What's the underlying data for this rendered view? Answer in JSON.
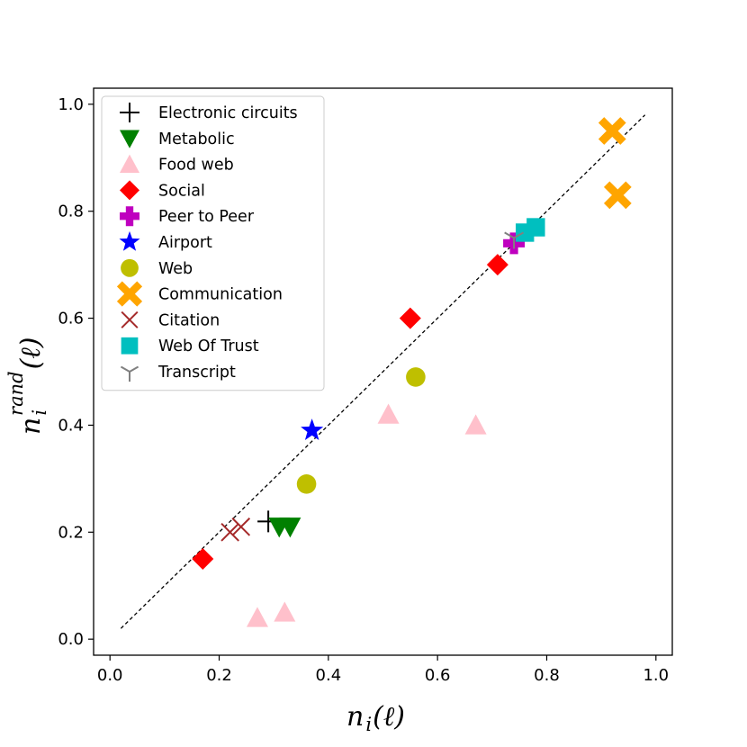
{
  "chart_data": {
    "type": "scatter",
    "xlabel": {
      "var": "n",
      "sub": "i",
      "arg": "(ℓ)"
    },
    "ylabel": {
      "var": "n",
      "sup": "rand",
      "sub": "i",
      "arg": "(ℓ)"
    },
    "xlim": [
      -0.03,
      1.03
    ],
    "ylim": [
      -0.03,
      1.03
    ],
    "xticks": [
      0.0,
      0.2,
      0.4,
      0.6,
      0.8,
      1.0
    ],
    "yticks": [
      0.0,
      0.2,
      0.4,
      0.6,
      0.8,
      1.0
    ],
    "xtick_labels": [
      "0.0",
      "0.2",
      "0.4",
      "0.6",
      "0.8",
      "1.0"
    ],
    "ytick_labels": [
      "0.0",
      "0.2",
      "0.4",
      "0.6",
      "0.8",
      "1.0"
    ],
    "grid": false,
    "legend_position": "top-left",
    "reference_line": {
      "x": [
        0.02,
        0.98
      ],
      "y": [
        0.02,
        0.98
      ],
      "style": "dashed",
      "color": "#000000"
    },
    "series": [
      {
        "name": "Electronic circuits",
        "marker": "plus",
        "color": "#000000",
        "points": [
          [
            0.29,
            0.22
          ]
        ]
      },
      {
        "name": "Metabolic",
        "marker": "triangle-down",
        "color": "#008000",
        "points": [
          [
            0.31,
            0.21
          ],
          [
            0.33,
            0.21
          ]
        ]
      },
      {
        "name": "Food web",
        "marker": "triangle-up",
        "color": "#ffc0cb",
        "points": [
          [
            0.51,
            0.42
          ],
          [
            0.67,
            0.4
          ],
          [
            0.27,
            0.04
          ],
          [
            0.32,
            0.05
          ]
        ]
      },
      {
        "name": "Social",
        "marker": "diamond",
        "color": "#ff0000",
        "points": [
          [
            0.17,
            0.15
          ],
          [
            0.55,
            0.6
          ],
          [
            0.71,
            0.7
          ]
        ]
      },
      {
        "name": "Peer to Peer",
        "marker": "plus-filled",
        "color": "#bf00bf",
        "points": [
          [
            0.74,
            0.74
          ]
        ]
      },
      {
        "name": "Airport",
        "marker": "star",
        "color": "#0000ff",
        "points": [
          [
            0.37,
            0.39
          ]
        ]
      },
      {
        "name": "Web",
        "marker": "circle",
        "color": "#bfbf00",
        "points": [
          [
            0.36,
            0.29
          ],
          [
            0.56,
            0.49
          ]
        ]
      },
      {
        "name": "Communication",
        "marker": "x-filled",
        "color": "#ffa500",
        "points": [
          [
            0.92,
            0.95
          ],
          [
            0.93,
            0.83
          ]
        ]
      },
      {
        "name": "Citation",
        "marker": "x",
        "color": "#a52a2a",
        "points": [
          [
            0.22,
            0.2
          ],
          [
            0.24,
            0.21
          ]
        ]
      },
      {
        "name": "Web Of Trust",
        "marker": "square",
        "color": "#00bfbf",
        "points": [
          [
            0.76,
            0.76
          ],
          [
            0.78,
            0.77
          ]
        ]
      },
      {
        "name": "Transcript",
        "marker": "tri-down",
        "color": "#808080",
        "points": [
          [
            0.74,
            0.75
          ]
        ]
      }
    ]
  }
}
